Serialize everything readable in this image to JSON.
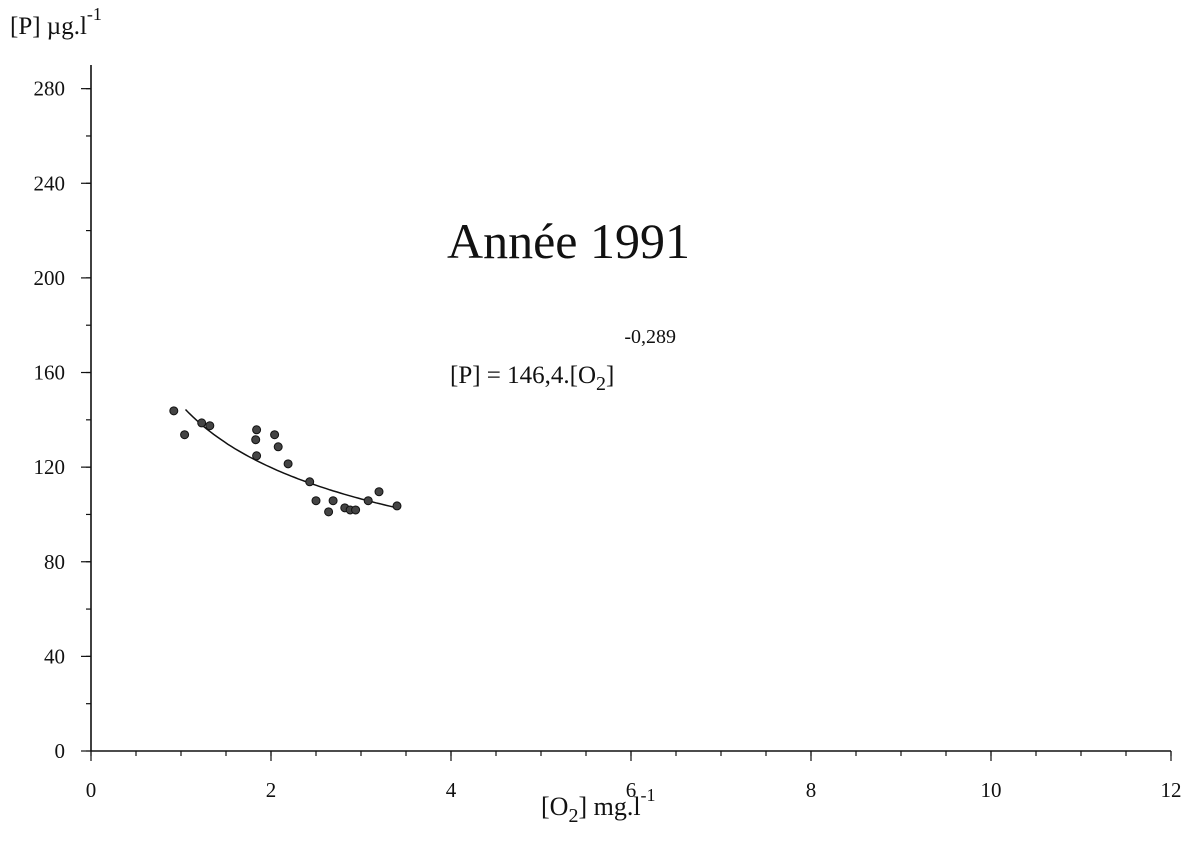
{
  "chart_data": {
    "type": "scatter",
    "title": "Année  1991",
    "equation": [
      "[P] = 146,4.[O",
      "2",
      "]",
      "-0,289"
    ],
    "y_label": [
      "[P]  µg.l",
      "-1"
    ],
    "x_label": [
      "[O",
      "2",
      "]  mg.l",
      "-1"
    ],
    "x": [
      0.92,
      1.04,
      1.23,
      1.32,
      1.83,
      1.84,
      1.84,
      2.04,
      2.08,
      2.19,
      2.43,
      2.5,
      2.64,
      2.69,
      2.82,
      2.88,
      2.94,
      3.08,
      3.2,
      3.4
    ],
    "values": [
      143.8,
      133.7,
      138.7,
      137.5,
      131.6,
      135.8,
      124.8,
      133.7,
      128.6,
      121.4,
      113.8,
      105.8,
      101.1,
      105.8,
      102.8,
      101.9,
      101.9,
      105.8,
      109.6,
      103.6
    ],
    "color": "#444444",
    "fit": {
      "coefficient": 146.4,
      "exponent": -0.289,
      "x_range": [
        1.05,
        3.4
      ]
    },
    "xlim": [
      0,
      12
    ],
    "ylim": [
      0,
      290
    ],
    "xticks": [
      0,
      2,
      4,
      6,
      8,
      10,
      12
    ],
    "yticks": [
      0,
      40,
      80,
      120,
      160,
      200,
      240,
      280
    ],
    "x_minor_step": 0.5,
    "y_minor_step": 20
  }
}
